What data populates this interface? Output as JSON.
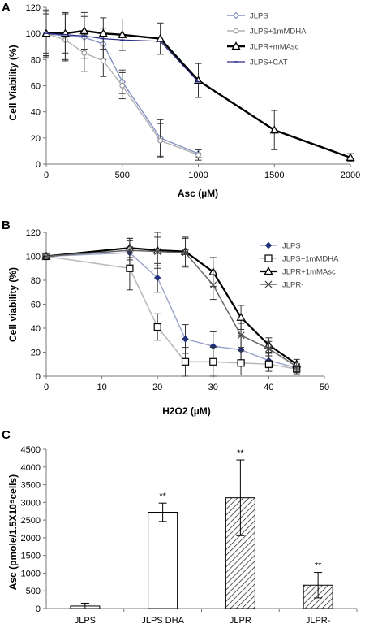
{
  "panels": {
    "a": "A",
    "b": "B",
    "c": "C"
  },
  "chart_data": [
    {
      "type": "line",
      "panel": "A",
      "xlabel": "Asc  (µM)",
      "ylabel": "Cell Viability (%)",
      "xlim": [
        0,
        2000
      ],
      "ylim": [
        0,
        120
      ],
      "xticks": [
        "0",
        "500",
        "1000",
        "1500",
        "2000"
      ],
      "yticks": [
        "0",
        "20",
        "40",
        "60",
        "80",
        "100",
        "120"
      ],
      "legend_position": "top-right",
      "colors": {
        "JLPS": "#8090c0",
        "JLPS+1mMDHA": "#b0b0b0",
        "JLPR+mMAsc": "#000000",
        "JLPS+CAT": "#2a2a8a"
      },
      "series": [
        {
          "name": "JLPS",
          "x": [
            0,
            125,
            250,
            375,
            500,
            750,
            1000
          ],
          "values": [
            100,
            98,
            97,
            92,
            63,
            20,
            8
          ],
          "err": [
            17,
            18,
            16,
            12,
            9,
            14,
            3
          ]
        },
        {
          "name": "JLPS+1mMDHA",
          "x": [
            0,
            125,
            250,
            375,
            500,
            750,
            1000
          ],
          "values": [
            100,
            95,
            85,
            79,
            60,
            18,
            7
          ],
          "err": [
            15,
            16,
            14,
            12,
            10,
            13,
            4
          ]
        },
        {
          "name": "JLPR+mMAsc",
          "x": [
            0,
            125,
            250,
            375,
            500,
            750,
            1000,
            1500,
            2000
          ],
          "values": [
            100,
            100,
            102,
            100,
            99,
            96,
            64,
            26,
            5
          ],
          "err": [
            18,
            15,
            14,
            12,
            12,
            12,
            13,
            15,
            3
          ]
        },
        {
          "name": "JLPS+CAT",
          "x": [
            0,
            125,
            250,
            375,
            500,
            750,
            1000
          ],
          "values": [
            100,
            99,
            98,
            96,
            95,
            94,
            63
          ],
          "err": [
            0,
            0,
            0,
            0,
            0,
            0,
            0
          ]
        }
      ]
    },
    {
      "type": "line",
      "panel": "B",
      "xlabel": "H2O2 (µM)",
      "ylabel": "Cell viability (%)",
      "xlim": [
        0,
        50
      ],
      "ylim": [
        0,
        120
      ],
      "xticks": [
        "0",
        "10",
        "20",
        "30",
        "40",
        "50"
      ],
      "yticks": [
        "0",
        "20",
        "40",
        "60",
        "80",
        "100",
        "120"
      ],
      "legend_position": "top-right",
      "series": [
        {
          "name": "JLPS",
          "x": [
            0,
            15,
            20,
            25,
            30,
            35,
            40,
            45
          ],
          "values": [
            100,
            103,
            82,
            31,
            25,
            22,
            13,
            7
          ],
          "err": [
            0,
            12,
            12,
            12,
            12,
            12,
            6,
            3
          ]
        },
        {
          "name": "JLPS+1mMDHA",
          "x": [
            0,
            15,
            20,
            25,
            30,
            35,
            40,
            45
          ],
          "values": [
            100,
            90,
            41,
            12,
            12,
            11,
            10,
            6
          ],
          "err": [
            0,
            18,
            11,
            12,
            12,
            10,
            6,
            4
          ]
        },
        {
          "name": "JLPR+1mMAsc",
          "x": [
            0,
            15,
            20,
            25,
            30,
            35,
            40,
            45
          ],
          "values": [
            100,
            107,
            105,
            104,
            87,
            49,
            26,
            10
          ],
          "err": [
            0,
            8,
            15,
            12,
            12,
            10,
            6,
            4
          ]
        },
        {
          "name": "JLPR-",
          "x": [
            0,
            15,
            20,
            25,
            30,
            35,
            40,
            45
          ],
          "values": [
            100,
            105,
            104,
            103,
            76,
            34,
            23,
            8
          ],
          "err": [
            0,
            8,
            12,
            12,
            12,
            10,
            6,
            4
          ]
        }
      ]
    },
    {
      "type": "bar",
      "panel": "C",
      "ylabel": "Asc (pmole/1.5X10⁵cells)",
      "ylim": [
        0,
        4500
      ],
      "yticks": [
        "0",
        "500",
        "1000",
        "1500",
        "2000",
        "2500",
        "3000",
        "3500",
        "4000",
        "4500"
      ],
      "categories": [
        "JLPS",
        "JLPS DHA",
        "JLPR",
        "JLPR-"
      ],
      "values": [
        70,
        2720,
        3130,
        660
      ],
      "err": [
        80,
        260,
        1070,
        360
      ],
      "significance": [
        "",
        "**",
        "**",
        "**"
      ],
      "fills": [
        "white",
        "white",
        "hatched",
        "hatched"
      ]
    }
  ]
}
